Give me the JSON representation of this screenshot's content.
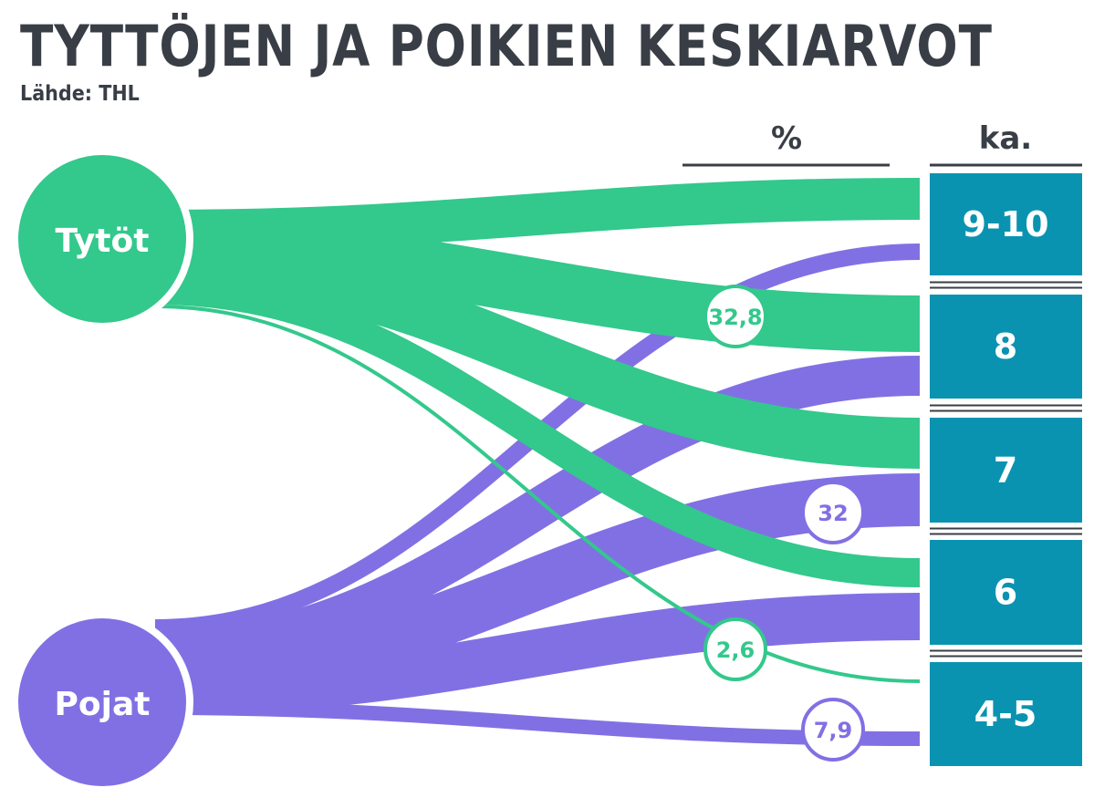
{
  "title": "TYTTÖJEN JA POIKIEN KESKIARVOT",
  "source": "Lähde: THL",
  "headers": {
    "percent": "%",
    "average": "ka."
  },
  "colors": {
    "girls": "#33c88c",
    "boys": "#8170e4",
    "category": "#0a93b1",
    "text": "#393e46"
  },
  "chart_data": {
    "type": "sankey",
    "sources": [
      "Tytöt",
      "Pojat"
    ],
    "targets": [
      "9-10",
      "8",
      "7",
      "6",
      "4-5"
    ],
    "labeled_values": [
      {
        "source": "Tytöt",
        "target": "8",
        "value": "32,8"
      },
      {
        "source": "Tytöt",
        "target": "4-5",
        "value": "2,6"
      },
      {
        "source": "Pojat",
        "target": "7",
        "value": "32"
      },
      {
        "source": "Pojat",
        "target": "4-5",
        "value": "7,9"
      }
    ]
  }
}
